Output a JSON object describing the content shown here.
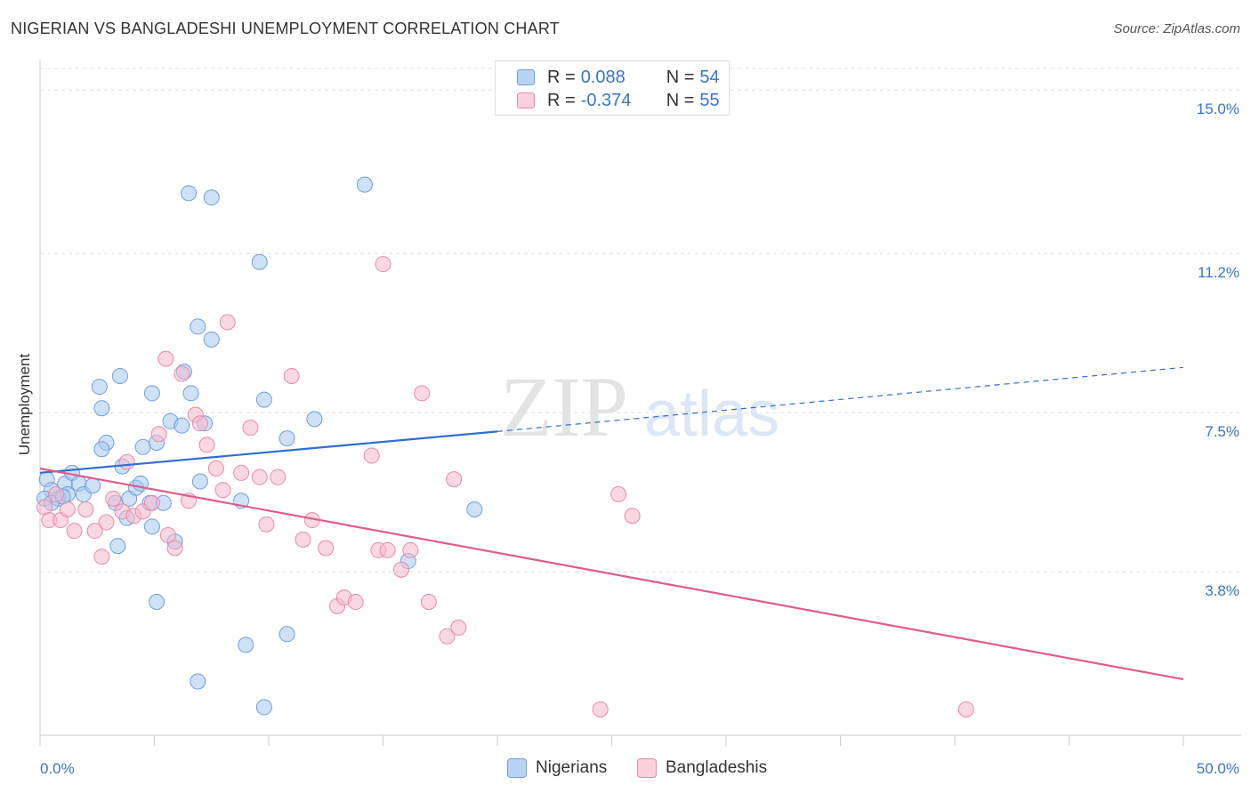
{
  "title": "NIGERIAN VS BANGLADESHI UNEMPLOYMENT CORRELATION CHART",
  "source": "Source: ZipAtlas.com",
  "watermark": {
    "zip": "ZIP",
    "atlas": "atlas"
  },
  "legend_top": [
    {
      "r_label": "R = ",
      "r_value": "0.088",
      "n_label": "N = ",
      "n_value": "54",
      "color": "#a8c8f0"
    },
    {
      "r_label": "R = ",
      "r_value": "-0.374",
      "n_label": "N = ",
      "n_value": "55",
      "color": "#f5b8cb"
    }
  ],
  "legend_bottom": [
    {
      "label": "Nigerians",
      "color": "#a8c8f0"
    },
    {
      "label": "Bangladeshis",
      "color": "#f5b8cb"
    }
  ],
  "chart_data": {
    "type": "scatter",
    "title": "NIGERIAN VS BANGLADESHI UNEMPLOYMENT CORRELATION CHART",
    "xlabel": "",
    "ylabel": "Unemployment",
    "xlim": [
      0,
      50
    ],
    "ylim": [
      0,
      15.5
    ],
    "x_tick_labels": [
      "0.0%",
      "50.0%"
    ],
    "y_ticks": [
      3.8,
      7.5,
      11.2,
      15.0
    ],
    "y_tick_labels": [
      "3.8%",
      "7.5%",
      "11.2%",
      "15.0%"
    ],
    "grid": true,
    "legend_position": "top-center",
    "series": [
      {
        "name": "Nigerians",
        "color": "#a8c8f0",
        "stroke": "#6f9fdc",
        "line_color": "#2f6fce",
        "trend": {
          "x0": 0,
          "y0": 6.1,
          "x1": 20,
          "y1": 7.06,
          "dash_to_x": 50,
          "dash_to_y": 8.55
        },
        "points": [
          [
            0.3,
            5.95
          ],
          [
            0.5,
            5.7
          ],
          [
            0.2,
            5.5
          ],
          [
            0.8,
            5.5
          ],
          [
            1.1,
            5.85
          ],
          [
            1.4,
            6.1
          ],
          [
            1.7,
            5.85
          ],
          [
            1.9,
            5.6
          ],
          [
            2.3,
            5.8
          ],
          [
            1.2,
            5.6
          ],
          [
            2.9,
            6.8
          ],
          [
            2.7,
            6.65
          ],
          [
            3.6,
            6.25
          ],
          [
            3.3,
            5.4
          ],
          [
            3.9,
            5.5
          ],
          [
            4.2,
            5.75
          ],
          [
            4.4,
            5.85
          ],
          [
            4.8,
            5.4
          ],
          [
            3.4,
            4.4
          ],
          [
            3.8,
            5.05
          ],
          [
            4.5,
            6.7
          ],
          [
            5.1,
            6.8
          ],
          [
            5.4,
            5.4
          ],
          [
            4.9,
            4.85
          ],
          [
            5.9,
            4.5
          ],
          [
            5.7,
            7.3
          ],
          [
            6.2,
            7.2
          ],
          [
            6.6,
            7.95
          ],
          [
            6.3,
            8.45
          ],
          [
            7.0,
            5.9
          ],
          [
            7.2,
            7.25
          ],
          [
            6.9,
            9.5
          ],
          [
            7.5,
            9.2
          ],
          [
            5.1,
            3.1
          ],
          [
            2.6,
            8.1
          ],
          [
            2.7,
            7.6
          ],
          [
            3.5,
            8.35
          ],
          [
            4.9,
            7.95
          ],
          [
            6.5,
            12.6
          ],
          [
            7.5,
            12.5
          ],
          [
            9.6,
            11.0
          ],
          [
            8.8,
            5.45
          ],
          [
            9.8,
            7.8
          ],
          [
            10.8,
            6.9
          ],
          [
            12.0,
            7.35
          ],
          [
            10.8,
            2.35
          ],
          [
            14.2,
            12.8
          ],
          [
            9.0,
            2.1
          ],
          [
            6.9,
            1.25
          ],
          [
            9.8,
            0.65
          ],
          [
            16.1,
            4.05
          ],
          [
            19.0,
            5.25
          ],
          [
            0.5,
            5.4
          ],
          [
            1.0,
            5.55
          ]
        ]
      },
      {
        "name": "Bangladeshis",
        "color": "#f5b8cb",
        "stroke": "#e88aa8",
        "line_color": "#e05c8c",
        "trend": {
          "x0": 0,
          "y0": 6.2,
          "x1": 50,
          "y1": 1.3
        },
        "points": [
          [
            0.2,
            5.3
          ],
          [
            0.4,
            5.0
          ],
          [
            0.7,
            5.6
          ],
          [
            0.9,
            5.0
          ],
          [
            1.2,
            5.25
          ],
          [
            1.5,
            4.75
          ],
          [
            2.0,
            5.25
          ],
          [
            2.4,
            4.75
          ],
          [
            2.9,
            4.95
          ],
          [
            3.2,
            5.5
          ],
          [
            2.7,
            4.15
          ],
          [
            3.6,
            5.2
          ],
          [
            3.8,
            6.35
          ],
          [
            4.1,
            5.1
          ],
          [
            4.5,
            5.2
          ],
          [
            4.9,
            5.4
          ],
          [
            5.2,
            7.0
          ],
          [
            5.5,
            8.75
          ],
          [
            5.6,
            4.65
          ],
          [
            5.9,
            4.35
          ],
          [
            6.2,
            8.4
          ],
          [
            6.5,
            5.45
          ],
          [
            6.8,
            7.45
          ],
          [
            7.0,
            7.25
          ],
          [
            7.3,
            6.75
          ],
          [
            7.7,
            6.2
          ],
          [
            8.0,
            5.7
          ],
          [
            8.2,
            9.6
          ],
          [
            8.8,
            6.1
          ],
          [
            9.2,
            7.15
          ],
          [
            9.6,
            6.0
          ],
          [
            9.9,
            4.9
          ],
          [
            10.4,
            6.0
          ],
          [
            11.0,
            8.35
          ],
          [
            11.5,
            4.55
          ],
          [
            11.9,
            5.0
          ],
          [
            12.5,
            4.35
          ],
          [
            13.0,
            3.0
          ],
          [
            13.3,
            3.2
          ],
          [
            13.8,
            3.1
          ],
          [
            14.5,
            6.5
          ],
          [
            14.8,
            4.3
          ],
          [
            15.2,
            4.3
          ],
          [
            15.8,
            3.85
          ],
          [
            16.2,
            4.3
          ],
          [
            16.7,
            7.95
          ],
          [
            15.0,
            10.95
          ],
          [
            17.0,
            3.1
          ],
          [
            17.8,
            2.3
          ],
          [
            18.3,
            2.5
          ],
          [
            18.1,
            5.95
          ],
          [
            25.3,
            5.6
          ],
          [
            25.9,
            5.1
          ],
          [
            24.5,
            0.6
          ],
          [
            40.5,
            0.6
          ]
        ]
      }
    ]
  }
}
